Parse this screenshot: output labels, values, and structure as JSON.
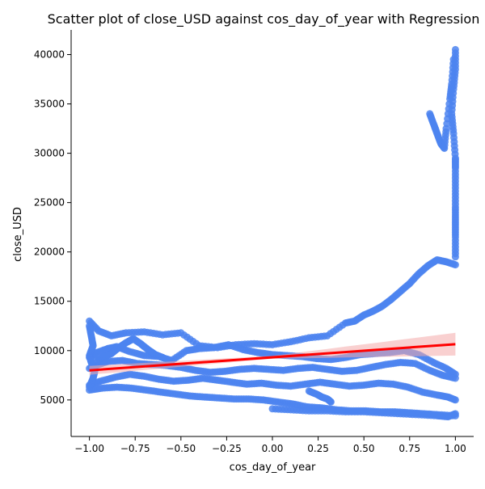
{
  "chart_data": {
    "type": "scatter",
    "title": "Scatter plot of close_USD against cos_day_of_year with Regression",
    "xlabel": "cos_day_of_year",
    "ylabel": "close_USD",
    "xlim": [
      -1.1,
      1.1
    ],
    "ylim": [
      1300,
      42500
    ],
    "xticks": [
      -1.0,
      -0.75,
      -0.5,
      -0.25,
      0.0,
      0.25,
      0.5,
      0.75,
      1.0
    ],
    "xtick_labels": [
      "−1.00",
      "−0.75",
      "−0.50",
      "−0.25",
      "0.00",
      "0.25",
      "0.50",
      "0.75",
      "1.00"
    ],
    "yticks": [
      5000,
      10000,
      15000,
      20000,
      25000,
      30000,
      35000,
      40000
    ],
    "ytick_labels": [
      "5000",
      "10000",
      "15000",
      "20000",
      "25000",
      "30000",
      "35000",
      "40000"
    ],
    "grid": false,
    "series": [
      {
        "kind": "points",
        "color": "#4c84f0",
        "segments": [
          {
            "x": [
              -1.0,
              -0.95,
              -0.88,
              -0.8,
              -0.7,
              -0.6,
              -0.5,
              -0.4,
              -0.3,
              -0.2,
              -0.1,
              0.0,
              0.1,
              0.2,
              0.3,
              0.4,
              0.45,
              0.5,
              0.55,
              0.6,
              0.65,
              0.7,
              0.75,
              0.8,
              0.85,
              0.9,
              0.95,
              1.0
            ],
            "y": [
              13000,
              12000,
              11500,
              11800,
              11900,
              11600,
              11800,
              10500,
              10300,
              10600,
              10700,
              10600,
              10900,
              11300,
              11500,
              12800,
              13000,
              13600,
              14000,
              14500,
              15200,
              16000,
              16800,
              17800,
              18600,
              19200,
              19000,
              18700
            ]
          },
          {
            "x": [
              1.0,
              1.0,
              1.0,
              1.0,
              1.0,
              1.0,
              1.0,
              0.99,
              0.98,
              0.99,
              1.0,
              1.0
            ],
            "y": [
              19500,
              21500,
              23000,
              24500,
              26500,
              28500,
              29500,
              32000,
              34000,
              36500,
              38500,
              40500
            ]
          },
          {
            "x": [
              0.86,
              0.88,
              0.9,
              0.92,
              0.94,
              0.95,
              0.97,
              0.98,
              0.99
            ],
            "y": [
              34000,
              33000,
              32000,
              31000,
              30500,
              32500,
              35500,
              37000,
              39500
            ]
          },
          {
            "x": [
              -1.0,
              -0.96,
              -0.9,
              -0.85,
              -0.78,
              -0.7,
              -0.62,
              -0.55,
              -0.47,
              -0.4,
              -0.32,
              -0.24,
              -0.16,
              -0.08,
              0.0,
              0.08,
              0.16,
              0.24,
              0.32,
              0.4,
              0.48,
              0.56,
              0.64,
              0.72,
              0.8,
              0.88,
              0.95,
              1.0
            ],
            "y": [
              9300,
              9800,
              10200,
              10400,
              9900,
              9500,
              9400,
              9000,
              10000,
              10200,
              10300,
              10600,
              10100,
              9800,
              9600,
              9500,
              9400,
              9200,
              9100,
              9300,
              9600,
              9700,
              9800,
              10000,
              9600,
              8800,
              8200,
              7600
            ]
          },
          {
            "x": [
              -1.0,
              -0.95,
              -0.9,
              -0.82,
              -0.74,
              -0.66,
              -0.58,
              -0.5,
              -0.42,
              -0.34,
              -0.26,
              -0.18,
              -0.1,
              -0.02,
              0.06,
              0.14,
              0.22,
              0.3,
              0.38,
              0.46,
              0.54,
              0.62,
              0.7,
              0.78,
              0.86,
              0.93,
              1.0
            ],
            "y": [
              8200,
              8600,
              8900,
              9000,
              8700,
              8600,
              8500,
              8300,
              8000,
              7800,
              7900,
              8100,
              8200,
              8100,
              8000,
              8200,
              8300,
              8100,
              7900,
              8000,
              8300,
              8600,
              8800,
              8700,
              8000,
              7500,
              7200
            ]
          },
          {
            "x": [
              -1.0,
              -0.94,
              -0.86,
              -0.78,
              -0.7,
              -0.62,
              -0.54,
              -0.46,
              -0.38,
              -0.3,
              -0.22,
              -0.14,
              -0.06,
              0.02,
              0.1,
              0.18,
              0.26,
              0.34,
              0.42,
              0.5,
              0.58,
              0.66,
              0.74,
              0.82,
              0.9,
              0.96,
              1.0
            ],
            "y": [
              6500,
              6900,
              7300,
              7600,
              7400,
              7100,
              6900,
              7000,
              7200,
              7000,
              6800,
              6600,
              6700,
              6500,
              6400,
              6600,
              6800,
              6600,
              6400,
              6500,
              6700,
              6600,
              6300,
              5800,
              5500,
              5300,
              5000
            ]
          },
          {
            "x": [
              -1.0,
              -0.93,
              -0.85,
              -0.77,
              -0.69,
              -0.61,
              -0.53,
              -0.45,
              -0.37,
              -0.29,
              -0.21,
              -0.13,
              -0.05,
              0.03,
              0.11,
              0.19,
              0.27,
              0.35,
              0.43,
              0.51,
              0.59,
              0.67,
              0.75,
              0.83,
              0.91,
              1.0
            ],
            "y": [
              6000,
              6200,
              6300,
              6200,
              6000,
              5800,
              5600,
              5400,
              5300,
              5200,
              5100,
              5100,
              5000,
              4800,
              4600,
              4300,
              4200,
              4000,
              3900,
              3900,
              3800,
              3800,
              3700,
              3600,
              3500,
              3400
            ]
          },
          {
            "x": [
              0.0,
              0.1,
              0.2,
              0.3,
              0.4,
              0.5,
              0.6,
              0.7,
              0.8,
              0.9,
              0.96,
              1.0
            ],
            "y": [
              4100,
              4000,
              3900,
              3900,
              3800,
              3800,
              3700,
              3600,
              3500,
              3400,
              3300,
              3600
            ]
          },
          {
            "x": [
              -1.0,
              -0.99,
              -0.98,
              -1.0,
              -0.99,
              -0.97,
              -0.98,
              -1.0
            ],
            "y": [
              12500,
              11500,
              10500,
              9500,
              8800,
              8000,
              7200,
              6300
            ]
          },
          {
            "x": [
              -0.96,
              -0.92,
              -0.88,
              -0.84,
              -0.8,
              -0.76,
              -0.72,
              -0.68,
              -0.64,
              -0.6
            ],
            "y": [
              9000,
              9400,
              9700,
              10300,
              10800,
              11200,
              10700,
              10100,
              9600,
              9300
            ]
          },
          {
            "x": [
              0.2,
              0.24,
              0.27,
              0.3,
              0.32
            ],
            "y": [
              5900,
              5600,
              5300,
              5100,
              4800
            ]
          }
        ]
      },
      {
        "kind": "regression",
        "color": "#ff0000",
        "x": [
          -1.0,
          1.0
        ],
        "y": [
          8000,
          10650
        ],
        "ci_color": "#f4aaaa",
        "ci_halfwidth": [
          300,
          1000
        ]
      }
    ]
  }
}
